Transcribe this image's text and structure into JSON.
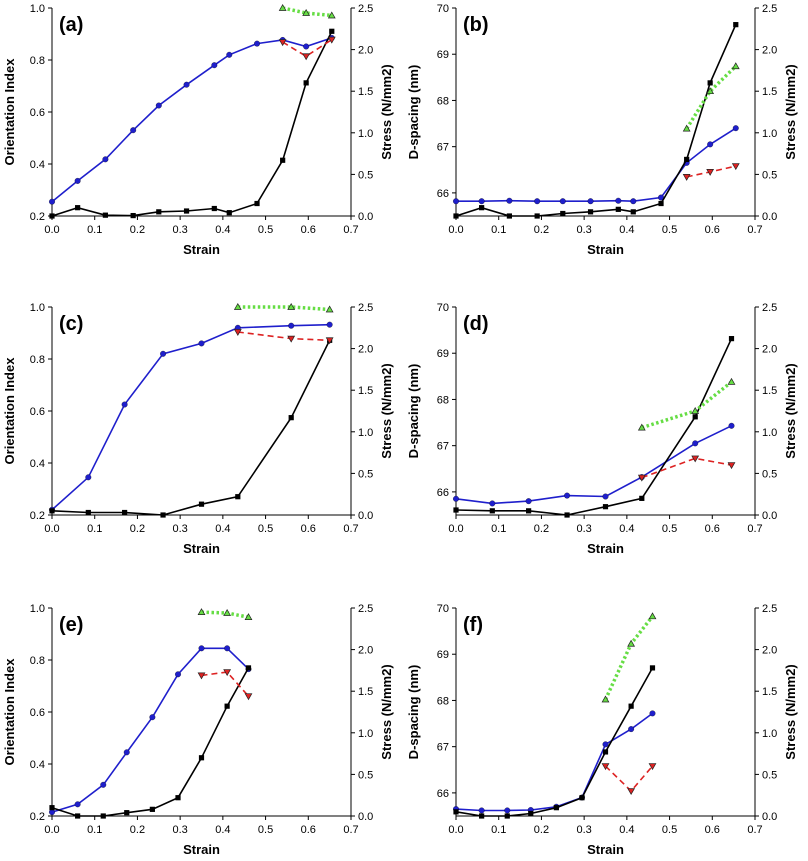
{
  "chart_data": [
    {
      "panel": "(a)",
      "type": "line",
      "xlabel": "Strain",
      "ylabel_left": "Orientation Index",
      "ylabel_right": "Stress (N/mm2)",
      "xlim": [
        0,
        0.7
      ],
      "xticks": [
        "0.0",
        "0.1",
        "0.2",
        "0.3",
        "0.4",
        "0.5",
        "0.6",
        "0.7"
      ],
      "ylim_left": [
        0.2,
        1.0
      ],
      "yticks_left": [
        "0.2",
        "0.4",
        "0.6",
        "0.8",
        "1.0"
      ],
      "ylim_right": [
        0,
        2.5
      ],
      "yticks_right": [
        "0.0",
        "0.5",
        "1.0",
        "1.5",
        "2.0",
        "2.5"
      ],
      "series": [
        {
          "name": "blue",
          "axis": "left",
          "color": "#1f1fcc",
          "marker": "circle",
          "dash": "none",
          "x": [
            0,
            0.06,
            0.125,
            0.19,
            0.25,
            0.315,
            0.38,
            0.415,
            0.48,
            0.54,
            0.595,
            0.655
          ],
          "y": [
            0.255,
            0.335,
            0.418,
            0.53,
            0.625,
            0.705,
            0.78,
            0.82,
            0.863,
            0.877,
            0.852,
            0.885
          ]
        },
        {
          "name": "black",
          "axis": "right",
          "color": "#000000",
          "marker": "square",
          "dash": "none",
          "x": [
            0,
            0.06,
            0.125,
            0.19,
            0.25,
            0.315,
            0.38,
            0.415,
            0.48,
            0.54,
            0.595,
            0.655
          ],
          "y": [
            0,
            0.1,
            0.01,
            0.005,
            0.05,
            0.06,
            0.09,
            0.04,
            0.15,
            0.67,
            1.6,
            2.22
          ]
        },
        {
          "name": "green",
          "axis": "right",
          "color": "#66dd44",
          "marker": "triangle",
          "dash": "dot",
          "x": [
            0.54,
            0.595,
            0.655
          ],
          "y": [
            2.5,
            2.44,
            2.41
          ]
        },
        {
          "name": "red",
          "axis": "right",
          "color": "#dd2222",
          "marker": "triangle-down",
          "dash": "dash",
          "x": [
            0.54,
            0.595,
            0.655
          ],
          "y": [
            2.09,
            1.92,
            2.12
          ]
        }
      ]
    },
    {
      "panel": "(b)",
      "type": "line",
      "xlabel": "Strain",
      "ylabel_left": "D-spacing (nm)",
      "ylabel_right": "Stress (N/mm2)",
      "xlim": [
        0,
        0.7
      ],
      "xticks": [
        "0.0",
        "0.1",
        "0.2",
        "0.3",
        "0.4",
        "0.5",
        "0.6",
        "0.7"
      ],
      "ylim_left": [
        65.5,
        70
      ],
      "yticks_left": [
        "66",
        "67",
        "68",
        "69",
        "70"
      ],
      "ylim_right": [
        0,
        2.5
      ],
      "yticks_right": [
        "0.0",
        "0.5",
        "1.0",
        "1.5",
        "2.0",
        "2.5"
      ],
      "series": [
        {
          "name": "blue",
          "axis": "left",
          "color": "#1f1fcc",
          "marker": "circle",
          "dash": "none",
          "x": [
            0,
            0.06,
            0.125,
            0.19,
            0.25,
            0.315,
            0.38,
            0.415,
            0.48,
            0.54,
            0.595,
            0.655
          ],
          "y": [
            65.82,
            65.82,
            65.83,
            65.82,
            65.82,
            65.82,
            65.83,
            65.82,
            65.9,
            66.65,
            67.05,
            67.4
          ]
        },
        {
          "name": "black",
          "axis": "right",
          "color": "#000000",
          "marker": "square",
          "dash": "none",
          "x": [
            0,
            0.06,
            0.125,
            0.19,
            0.25,
            0.315,
            0.38,
            0.415,
            0.48,
            0.54,
            0.595,
            0.655
          ],
          "y": [
            0,
            0.1,
            0,
            0,
            0.03,
            0.05,
            0.08,
            0.05,
            0.15,
            0.68,
            1.6,
            2.3
          ]
        },
        {
          "name": "green",
          "axis": "right",
          "color": "#66dd44",
          "marker": "triangle",
          "dash": "dot",
          "x": [
            0.54,
            0.595,
            0.655
          ],
          "y": [
            1.05,
            1.5,
            1.8
          ]
        },
        {
          "name": "red",
          "axis": "right",
          "color": "#dd2222",
          "marker": "triangle-down",
          "dash": "dash",
          "x": [
            0.54,
            0.595,
            0.655
          ],
          "y": [
            0.47,
            0.53,
            0.6
          ]
        }
      ]
    },
    {
      "panel": "(c)",
      "type": "line",
      "xlabel": "Strain",
      "ylabel_left": "Orientation Index",
      "ylabel_right": "Stress (N/mm2)",
      "xlim": [
        0,
        0.7
      ],
      "xticks": [
        "0.0",
        "0.1",
        "0.2",
        "0.3",
        "0.4",
        "0.5",
        "0.6",
        "0.7"
      ],
      "ylim_left": [
        0.2,
        1.0
      ],
      "yticks_left": [
        "0.2",
        "0.4",
        "0.6",
        "0.8",
        "1.0"
      ],
      "ylim_right": [
        0,
        2.5
      ],
      "yticks_right": [
        "0.0",
        "0.5",
        "1.0",
        "1.5",
        "2.0",
        "2.5"
      ],
      "series": [
        {
          "name": "blue",
          "axis": "left",
          "color": "#1f1fcc",
          "marker": "circle",
          "dash": "none",
          "x": [
            0,
            0.085,
            0.17,
            0.26,
            0.35,
            0.435,
            0.56,
            0.65
          ],
          "y": [
            0.22,
            0.345,
            0.625,
            0.82,
            0.86,
            0.92,
            0.928,
            0.932
          ]
        },
        {
          "name": "black",
          "axis": "right",
          "color": "#000000",
          "marker": "square",
          "dash": "none",
          "x": [
            0,
            0.085,
            0.17,
            0.26,
            0.35,
            0.435,
            0.56,
            0.65
          ],
          "y": [
            0.05,
            0.03,
            0.03,
            0,
            0.13,
            0.22,
            1.17,
            2.1
          ]
        },
        {
          "name": "green",
          "axis": "right",
          "color": "#66dd44",
          "marker": "triangle",
          "dash": "dot",
          "x": [
            0.435,
            0.56,
            0.65
          ],
          "y": [
            2.5,
            2.5,
            2.47
          ]
        },
        {
          "name": "red",
          "axis": "right",
          "color": "#dd2222",
          "marker": "triangle-down",
          "dash": "dash",
          "x": [
            0.435,
            0.56,
            0.65
          ],
          "y": [
            2.2,
            2.12,
            2.1
          ]
        }
      ]
    },
    {
      "panel": "(d)",
      "type": "line",
      "xlabel": "Strain",
      "ylabel_left": "D-spacing (nm)",
      "ylabel_right": "Stress (N/mm2)",
      "xlim": [
        0,
        0.7
      ],
      "xticks": [
        "0.0",
        "0.1",
        "0.2",
        "0.3",
        "0.4",
        "0.5",
        "0.6",
        "0.7"
      ],
      "ylim_left": [
        65.5,
        70
      ],
      "yticks_left": [
        "66",
        "67",
        "68",
        "69",
        "70"
      ],
      "ylim_right": [
        0,
        2.5
      ],
      "yticks_right": [
        "0.0",
        "0.5",
        "1.0",
        "1.5",
        "2.0",
        "2.5"
      ],
      "series": [
        {
          "name": "blue",
          "axis": "left",
          "color": "#1f1fcc",
          "marker": "circle",
          "dash": "none",
          "x": [
            0,
            0.085,
            0.17,
            0.26,
            0.35,
            0.435,
            0.56,
            0.645
          ],
          "y": [
            65.85,
            65.75,
            65.8,
            65.92,
            65.9,
            66.32,
            67.05,
            67.43
          ]
        },
        {
          "name": "black",
          "axis": "right",
          "color": "#000000",
          "marker": "square",
          "dash": "none",
          "x": [
            0,
            0.085,
            0.17,
            0.26,
            0.35,
            0.435,
            0.56,
            0.645
          ],
          "y": [
            0.06,
            0.05,
            0.05,
            0,
            0.1,
            0.2,
            1.18,
            2.12
          ]
        },
        {
          "name": "green",
          "axis": "right",
          "color": "#66dd44",
          "marker": "triangle",
          "dash": "dot",
          "x": [
            0.435,
            0.56,
            0.645
          ],
          "y": [
            1.05,
            1.25,
            1.6
          ]
        },
        {
          "name": "red",
          "axis": "right",
          "color": "#dd2222",
          "marker": "triangle-down",
          "dash": "dash",
          "x": [
            0.435,
            0.56,
            0.645
          ],
          "y": [
            0.45,
            0.68,
            0.6
          ]
        }
      ]
    },
    {
      "panel": "(e)",
      "type": "line",
      "xlabel": "Strain",
      "ylabel_left": "Orientation Index",
      "ylabel_right": "Stress (N/mm2)",
      "xlim": [
        0,
        0.7
      ],
      "xticks": [
        "0.0",
        "0.1",
        "0.2",
        "0.3",
        "0.4",
        "0.5",
        "0.6",
        "0.7"
      ],
      "ylim_left": [
        0.2,
        1.0
      ],
      "yticks_left": [
        "0.2",
        "0.4",
        "0.6",
        "0.8",
        "1.0"
      ],
      "ylim_right": [
        0,
        2.5
      ],
      "yticks_right": [
        "0.0",
        "0.5",
        "1.0",
        "1.5",
        "2.0",
        "2.5"
      ],
      "series": [
        {
          "name": "blue",
          "axis": "left",
          "color": "#1f1fcc",
          "marker": "circle",
          "dash": "none",
          "x": [
            0,
            0.06,
            0.12,
            0.175,
            0.235,
            0.295,
            0.35,
            0.41,
            0.46
          ],
          "y": [
            0.215,
            0.245,
            0.32,
            0.445,
            0.58,
            0.745,
            0.845,
            0.845,
            0.765
          ]
        },
        {
          "name": "black",
          "axis": "right",
          "color": "#000000",
          "marker": "square",
          "dash": "none",
          "x": [
            0,
            0.06,
            0.12,
            0.175,
            0.235,
            0.295,
            0.35,
            0.41,
            0.46
          ],
          "y": [
            0.1,
            0,
            0,
            0.04,
            0.08,
            0.22,
            0.7,
            1.32,
            1.78
          ]
        },
        {
          "name": "green",
          "axis": "right",
          "color": "#66dd44",
          "marker": "triangle",
          "dash": "dot",
          "x": [
            0.35,
            0.41,
            0.46
          ],
          "y": [
            2.45,
            2.44,
            2.39
          ]
        },
        {
          "name": "red",
          "axis": "right",
          "color": "#dd2222",
          "marker": "triangle-down",
          "dash": "dash",
          "x": [
            0.35,
            0.41,
            0.46
          ],
          "y": [
            1.69,
            1.73,
            1.44
          ]
        }
      ]
    },
    {
      "panel": "(f)",
      "type": "line",
      "xlabel": "Strain",
      "ylabel_left": "D-spacing (nm)",
      "ylabel_right": "Stress (N/mm2)",
      "xlim": [
        0,
        0.7
      ],
      "xticks": [
        "0.0",
        "0.1",
        "0.2",
        "0.3",
        "0.4",
        "0.5",
        "0.6",
        "0.7"
      ],
      "ylim_left": [
        65.5,
        70
      ],
      "yticks_left": [
        "66",
        "67",
        "68",
        "69",
        "70"
      ],
      "ylim_right": [
        0,
        2.5
      ],
      "yticks_right": [
        "0.0",
        "0.5",
        "1.0",
        "1.5",
        "2.0",
        "2.5"
      ],
      "series": [
        {
          "name": "blue",
          "axis": "left",
          "color": "#1f1fcc",
          "marker": "circle",
          "dash": "none",
          "x": [
            0,
            0.06,
            0.12,
            0.175,
            0.235,
            0.295,
            0.35,
            0.41,
            0.46
          ],
          "y": [
            65.65,
            65.62,
            65.62,
            65.63,
            65.7,
            65.9,
            67.05,
            67.38,
            67.72
          ]
        },
        {
          "name": "black",
          "axis": "right",
          "color": "#000000",
          "marker": "square",
          "dash": "none",
          "x": [
            0,
            0.06,
            0.12,
            0.175,
            0.235,
            0.295,
            0.35,
            0.41,
            0.46
          ],
          "y": [
            0.05,
            0,
            0,
            0.03,
            0.1,
            0.22,
            0.77,
            1.32,
            1.78
          ]
        },
        {
          "name": "green",
          "axis": "right",
          "color": "#66dd44",
          "marker": "triangle",
          "dash": "dot",
          "x": [
            0.35,
            0.41,
            0.46
          ],
          "y": [
            1.4,
            2.07,
            2.4
          ]
        },
        {
          "name": "red",
          "axis": "right",
          "color": "#dd2222",
          "marker": "triangle-down",
          "dash": "dash",
          "x": [
            0.35,
            0.41,
            0.46
          ],
          "y": [
            0.6,
            0.3,
            0.6
          ]
        }
      ]
    }
  ]
}
